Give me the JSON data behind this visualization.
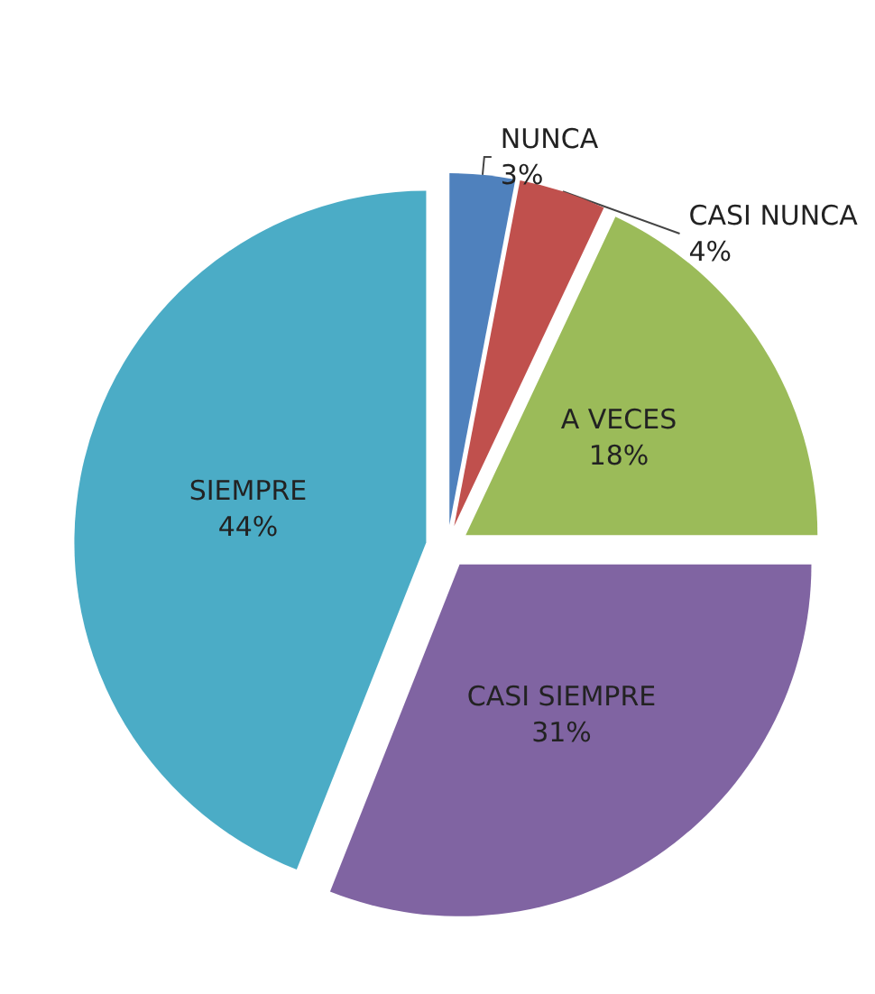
{
  "chart_data": {
    "type": "pie",
    "categories": [
      "NUNCA",
      "CASI NUNCA",
      "A VECES",
      "CASI SIEMPRE",
      "SIEMPRE"
    ],
    "values": [
      3,
      4,
      18,
      31,
      44
    ],
    "colors": [
      "#4f81bd",
      "#c0504d",
      "#9bbb59",
      "#8064a2",
      "#4bacc6"
    ],
    "value_labels": [
      "3%",
      "4%",
      "18%",
      "31%",
      "44%"
    ],
    "legend": false
  }
}
